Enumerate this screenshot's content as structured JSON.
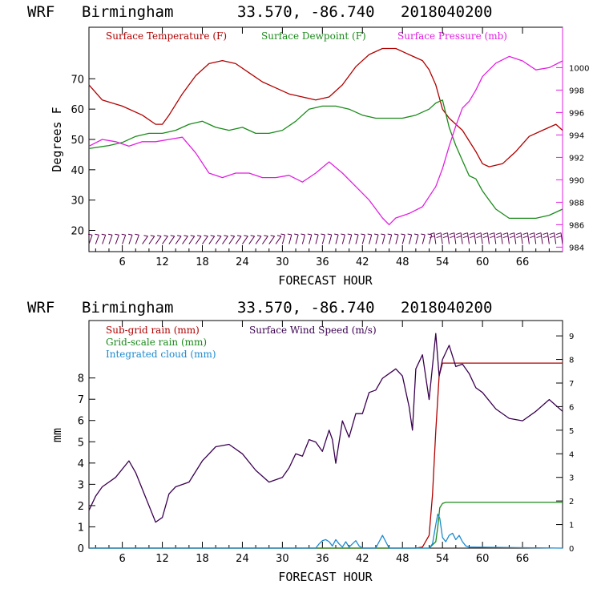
{
  "colors": {
    "temperature": "#b00000",
    "dewpoint": "#1a8a1a",
    "pressure": "#e020e0",
    "subgrid": "#b00000",
    "gridscale": "#1a8a1a",
    "cloud": "#1a8ad0",
    "wind": "#3a0050",
    "barbs": "#5a0050"
  },
  "chart_data": [
    {
      "type": "line",
      "header": {
        "model": "WRF",
        "location": "Birmingham",
        "coords": "33.570, -86.740",
        "init": "2018040200"
      },
      "xlabel": "FORECAST HOUR",
      "ylabel": "Degrees F",
      "xlim": [
        1,
        72
      ],
      "xticks": [
        "6",
        "12",
        "18",
        "24",
        "30",
        "36",
        "42",
        "48",
        "54",
        "60",
        "66"
      ],
      "ylim": [
        13,
        87
      ],
      "yticks": [
        "20",
        "30",
        "40",
        "50",
        "60",
        "70"
      ],
      "y2lim": [
        983.6,
        1003.6
      ],
      "y2ticks": [
        "984",
        "986",
        "988",
        "990",
        "992",
        "994",
        "996",
        "998",
        "1000"
      ],
      "legend": [
        "Surface Temperature (F)",
        "Surface Dewpoint (F)",
        "Surface Pressure (mb)"
      ],
      "series": [
        {
          "name": "Surface Temperature (F)",
          "axis": "left",
          "x": [
            1,
            3,
            6,
            9,
            11,
            12,
            13,
            15,
            17,
            19,
            21,
            23,
            25,
            27,
            29,
            31,
            33,
            35,
            37,
            39,
            41,
            43,
            45,
            47,
            49,
            51,
            52,
            53,
            54,
            55,
            57,
            59,
            60,
            61,
            63,
            65,
            67,
            69,
            71,
            72
          ],
          "y": [
            68,
            63,
            61,
            58,
            55,
            55,
            58,
            65,
            71,
            75,
            76,
            75,
            72,
            69,
            67,
            65,
            64,
            63,
            64,
            68,
            74,
            78,
            80,
            80,
            78,
            76,
            73,
            68,
            60,
            57,
            53,
            46,
            42,
            41,
            42,
            46,
            51,
            53,
            55,
            53
          ]
        },
        {
          "name": "Surface Dewpoint (F)",
          "axis": "left",
          "x": [
            1,
            4,
            6,
            8,
            10,
            12,
            14,
            16,
            18,
            20,
            22,
            24,
            26,
            28,
            30,
            32,
            34,
            36,
            38,
            40,
            42,
            44,
            46,
            48,
            50,
            52,
            53,
            54,
            55,
            56,
            57,
            58,
            59,
            60,
            61,
            62,
            64,
            66,
            68,
            70,
            72
          ],
          "y": [
            47,
            48,
            49,
            51,
            52,
            52,
            53,
            55,
            56,
            54,
            53,
            54,
            52,
            52,
            53,
            56,
            60,
            61,
            61,
            60,
            58,
            57,
            57,
            57,
            58,
            60,
            62,
            63,
            54,
            48,
            43,
            38,
            37,
            33,
            30,
            27,
            24,
            24,
            24,
            25,
            27
          ]
        },
        {
          "name": "Surface Pressure (mb)",
          "axis": "right",
          "x": [
            1,
            3,
            5,
            7,
            9,
            11,
            13,
            15,
            17,
            19,
            21,
            23,
            25,
            27,
            29,
            31,
            33,
            35,
            37,
            39,
            41,
            43,
            45,
            46,
            47,
            49,
            51,
            53,
            54,
            55,
            56,
            57,
            58,
            59,
            60,
            62,
            64,
            66,
            68,
            70,
            72
          ],
          "y": [
            993,
            993.6,
            993.4,
            993,
            993.4,
            993.4,
            993.6,
            993.8,
            992.4,
            990.6,
            990.2,
            990.6,
            990.6,
            990.2,
            990.2,
            990.4,
            989.8,
            990.6,
            991.6,
            990.6,
            989.4,
            988.2,
            986.6,
            986.0,
            986.6,
            987.0,
            987.6,
            989.4,
            991.0,
            993.0,
            994.8,
            996.4,
            997.0,
            998.0,
            999.2,
            1000.4,
            1001.0,
            1000.6,
            999.8,
            1000.0,
            1000.6
          ]
        }
      ],
      "wind_barbs": {
        "y": 15.5,
        "hours_from": 1,
        "hours_to": 72,
        "step": 1
      }
    },
    {
      "type": "line",
      "header": {
        "model": "WRF",
        "location": "Birmingham",
        "coords": "33.570, -86.740",
        "init": "2018040200"
      },
      "xlabel": "FORECAST HOUR",
      "ylabel": "mm",
      "xlim": [
        1,
        72
      ],
      "xticks": [
        "6",
        "12",
        "18",
        "24",
        "30",
        "36",
        "42",
        "48",
        "54",
        "60",
        "66"
      ],
      "ylim": [
        0,
        10.7
      ],
      "yticks": [
        "0",
        "1",
        "2",
        "3",
        "4",
        "5",
        "6",
        "7",
        "8"
      ],
      "y2lim": [
        0,
        9.65
      ],
      "y2ticks": [
        "0",
        "1",
        "2",
        "3",
        "4",
        "5",
        "6",
        "7",
        "8",
        "9"
      ],
      "legend": [
        "Sub-grid rain (mm)",
        "Grid-scale rain (mm)",
        "Integrated cloud (mm)",
        "Surface Wind Speed (m/s)"
      ],
      "series": [
        {
          "name": "Sub-grid rain (mm)",
          "axis": "left",
          "x": [
            1,
            50,
            51,
            52,
            52.5,
            53,
            53.5,
            54,
            72
          ],
          "y": [
            0,
            0,
            0.05,
            0.6,
            2.5,
            5.5,
            8.1,
            8.7,
            8.7
          ]
        },
        {
          "name": "Grid-scale rain (mm)",
          "axis": "left",
          "x": [
            1,
            52,
            53,
            53.3,
            53.6,
            54,
            54.5,
            72
          ],
          "y": [
            0,
            0,
            0.3,
            1.0,
            1.9,
            2.1,
            2.15,
            2.15
          ]
        },
        {
          "name": "Integrated cloud (mm)",
          "axis": "left",
          "x": [
            1,
            35,
            35.5,
            36,
            36.5,
            37,
            37.5,
            38,
            38.5,
            39,
            39.5,
            40,
            40.5,
            41,
            41.5,
            42,
            44,
            44.5,
            45,
            45.5,
            46,
            50,
            52,
            52.5,
            53,
            53.3,
            53.6,
            54,
            54.5,
            55,
            55.5,
            56,
            56.5,
            57,
            57.5,
            58,
            72
          ],
          "y": [
            0,
            0,
            0.2,
            0.35,
            0.4,
            0.3,
            0.1,
            0.4,
            0.2,
            0.05,
            0.3,
            0.05,
            0.2,
            0.35,
            0.1,
            0,
            0,
            0.3,
            0.6,
            0.3,
            0,
            0,
            0,
            0.2,
            1.1,
            1.6,
            1.4,
            0.5,
            0.3,
            0.6,
            0.7,
            0.4,
            0.6,
            0.3,
            0.1,
            0.05,
            0
          ]
        },
        {
          "name": "Surface Wind Speed (m/s)",
          "axis": "right",
          "x": [
            1,
            2,
            3,
            5,
            7,
            8,
            10,
            11,
            12,
            13,
            14,
            16,
            18,
            20,
            22,
            24,
            26,
            28,
            30,
            31,
            32,
            33,
            34,
            35,
            36,
            37,
            37.5,
            38,
            39,
            40,
            41,
            42,
            43,
            44,
            45,
            46,
            47,
            48,
            49,
            49.5,
            50,
            51,
            52,
            53,
            53.5,
            54,
            55,
            56,
            57,
            58,
            59,
            60,
            62,
            64,
            66,
            68,
            70,
            72
          ],
          "y": [
            1.6,
            2.2,
            2.6,
            3.0,
            3.7,
            3.2,
            1.8,
            1.1,
            1.3,
            2.3,
            2.6,
            2.8,
            3.7,
            4.3,
            4.4,
            4.0,
            3.3,
            2.8,
            3.0,
            3.4,
            4.0,
            3.9,
            4.6,
            4.5,
            4.1,
            5.0,
            4.6,
            3.6,
            5.4,
            4.7,
            5.7,
            5.7,
            6.6,
            6.7,
            7.2,
            7.4,
            7.6,
            7.3,
            6.0,
            5.0,
            7.6,
            8.2,
            6.3,
            9.1,
            7.3,
            8.0,
            8.6,
            7.7,
            7.8,
            7.4,
            6.8,
            6.6,
            5.9,
            5.5,
            5.4,
            5.8,
            6.3,
            5.8
          ]
        }
      ]
    }
  ]
}
